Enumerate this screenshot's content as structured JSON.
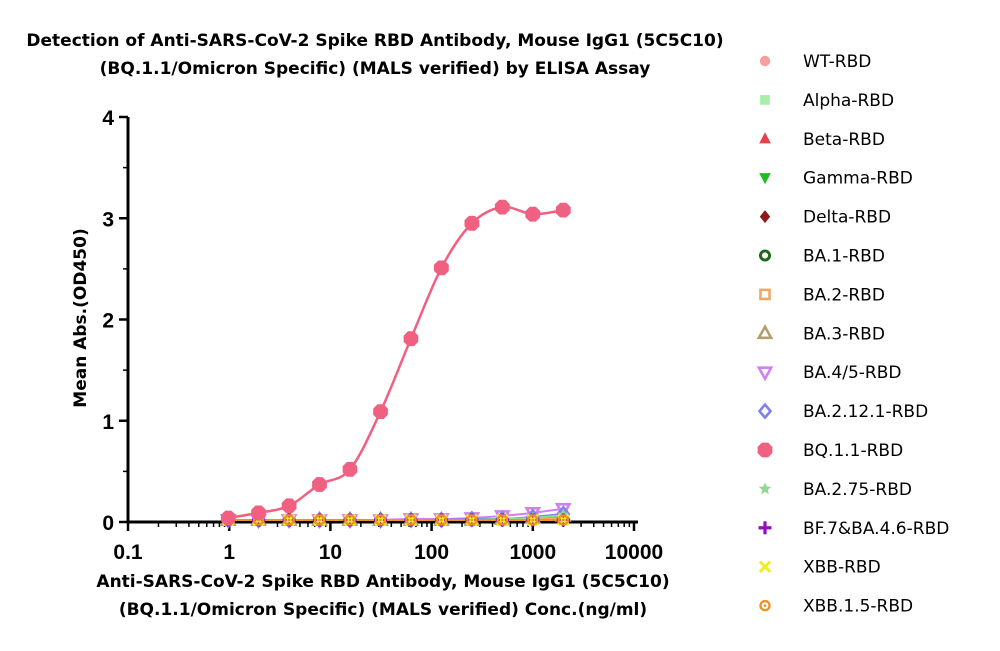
{
  "chart_data": {
    "type": "scatter",
    "title": [
      "Detection of Anti-SARS-CoV-2 Spike RBD Antibody, Mouse IgG1 (5C5C10)",
      "(BQ.1.1/Omicron Specific) (MALS verified) by ELISA Assay"
    ],
    "xlabel": [
      "Anti-SARS-CoV-2 Spike RBD Antibody, Mouse IgG1 (5C5C10)",
      "(BQ.1.1/Omicron Specific) (MALS verified) Conc.(ng/ml)"
    ],
    "ylabel": "Mean Abs.(OD450)",
    "x_scale": "log",
    "xlim": [
      0.1,
      10000
    ],
    "ylim": [
      0,
      4
    ],
    "x_ticks": [
      "0.1",
      "1",
      "10",
      "100",
      "1000",
      "10000"
    ],
    "y_ticks": [
      "0",
      "1",
      "2",
      "3",
      "4"
    ],
    "x_tick_values": [
      0.1,
      1,
      10,
      100,
      1000,
      10000
    ],
    "y_tick_values": [
      0,
      1,
      2,
      3,
      4
    ],
    "grid": false,
    "legend_position": "right",
    "x": [
      0.98,
      1.95,
      3.91,
      7.81,
      15.6,
      31.3,
      62.5,
      125,
      250,
      500,
      1000,
      2000
    ],
    "series": [
      {
        "name": "WT-RBD",
        "color": "#f4a0a0",
        "marker": "circle",
        "values": [
          0.02,
          0.02,
          0.02,
          0.02,
          0.02,
          0.02,
          0.02,
          0.02,
          0.02,
          0.02,
          0.03,
          0.04
        ]
      },
      {
        "name": "Alpha-RBD",
        "color": "#a8f0a8",
        "marker": "square",
        "values": [
          0.02,
          0.02,
          0.02,
          0.02,
          0.02,
          0.02,
          0.02,
          0.02,
          0.02,
          0.03,
          0.03,
          0.04
        ]
      },
      {
        "name": "Beta-RBD",
        "color": "#e8404a",
        "marker": "triangle-up",
        "values": [
          0.02,
          0.02,
          0.02,
          0.02,
          0.02,
          0.02,
          0.02,
          0.02,
          0.02,
          0.02,
          0.03,
          0.03
        ]
      },
      {
        "name": "Gamma-RBD",
        "color": "#22bb22",
        "marker": "triangle-down",
        "values": [
          0.02,
          0.02,
          0.02,
          0.02,
          0.02,
          0.02,
          0.02,
          0.02,
          0.02,
          0.02,
          0.03,
          0.03
        ]
      },
      {
        "name": "Delta-RBD",
        "color": "#8b1a1a",
        "marker": "diamond",
        "values": [
          0.02,
          0.02,
          0.02,
          0.02,
          0.02,
          0.02,
          0.02,
          0.02,
          0.02,
          0.02,
          0.02,
          0.03
        ]
      },
      {
        "name": "BA.1-RBD",
        "color": "#1a6b1a",
        "marker": "ring",
        "values": [
          0.02,
          0.02,
          0.02,
          0.02,
          0.02,
          0.02,
          0.02,
          0.02,
          0.02,
          0.02,
          0.03,
          0.04
        ]
      },
      {
        "name": "BA.2-RBD",
        "color": "#f0a868",
        "marker": "square-open",
        "values": [
          0.02,
          0.02,
          0.02,
          0.02,
          0.02,
          0.02,
          0.02,
          0.02,
          0.02,
          0.02,
          0.03,
          0.04
        ]
      },
      {
        "name": "BA.3-RBD",
        "color": "#b0a070",
        "marker": "triangle-open",
        "values": [
          0.02,
          0.02,
          0.02,
          0.02,
          0.02,
          0.02,
          0.02,
          0.02,
          0.02,
          0.03,
          0.04,
          0.06
        ]
      },
      {
        "name": "BA.4/5-RBD",
        "color": "#d080f0",
        "marker": "triangle-down-open",
        "values": [
          0.02,
          0.02,
          0.02,
          0.02,
          0.02,
          0.02,
          0.03,
          0.03,
          0.04,
          0.06,
          0.09,
          0.13
        ]
      },
      {
        "name": "BA.2.12.1-RBD",
        "color": "#8080f0",
        "marker": "diamond-open",
        "values": [
          0.02,
          0.02,
          0.02,
          0.02,
          0.02,
          0.02,
          0.02,
          0.02,
          0.03,
          0.03,
          0.05,
          0.08
        ]
      },
      {
        "name": "BQ.1.1-RBD",
        "color": "#f06080",
        "marker": "octagon",
        "values": [
          0.04,
          0.09,
          0.16,
          0.37,
          0.52,
          1.09,
          1.81,
          2.51,
          2.95,
          3.11,
          3.04,
          3.08
        ]
      },
      {
        "name": "BA.2.75-RBD",
        "color": "#90d890",
        "marker": "star",
        "values": [
          0.02,
          0.02,
          0.02,
          0.02,
          0.02,
          0.02,
          0.02,
          0.02,
          0.02,
          0.03,
          0.04,
          0.07
        ]
      },
      {
        "name": "BF.7&BA.4.6-RBD",
        "color": "#9010c0",
        "marker": "plus",
        "values": [
          0.02,
          0.02,
          0.02,
          0.02,
          0.02,
          0.02,
          0.02,
          0.02,
          0.02,
          0.02,
          0.02,
          0.02
        ]
      },
      {
        "name": "XBB-RBD",
        "color": "#f0f020",
        "marker": "x",
        "values": [
          0.02,
          0.02,
          0.02,
          0.02,
          0.02,
          0.02,
          0.02,
          0.02,
          0.02,
          0.02,
          0.02,
          0.02
        ]
      },
      {
        "name": "XBB.1.5-RBD",
        "color": "#f09020",
        "marker": "target",
        "values": [
          0.02,
          0.02,
          0.02,
          0.02,
          0.02,
          0.02,
          0.02,
          0.02,
          0.02,
          0.02,
          0.02,
          0.02
        ]
      }
    ]
  }
}
